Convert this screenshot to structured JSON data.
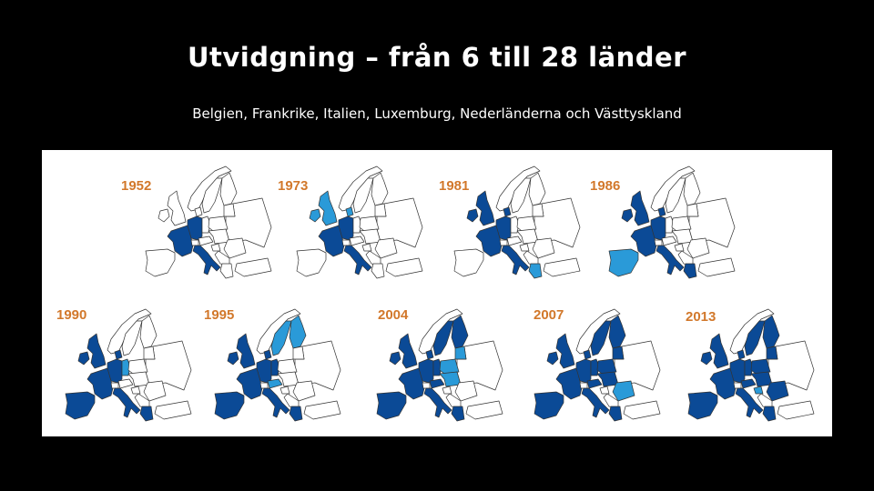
{
  "title": "Utvidgning – från 6 till 28 länder",
  "subtitle": "Belgien, Frankrike, Italien, Luxemburg, Nederländerna och Västtyskland",
  "colors": {
    "member": "#0b4a96",
    "new_member": "#2a9ad8",
    "non_member": "#ffffff",
    "year_label": "#d2782b"
  },
  "maps": [
    {
      "year": "1952",
      "members": [
        "france",
        "west_germany_benelux",
        "italy"
      ],
      "new": []
    },
    {
      "year": "1973",
      "members": [
        "france",
        "west_germany_benelux",
        "italy"
      ],
      "new": [
        "uk",
        "ireland",
        "denmark"
      ]
    },
    {
      "year": "1981",
      "members": [
        "france",
        "west_germany_benelux",
        "italy",
        "uk",
        "ireland",
        "denmark"
      ],
      "new": [
        "greece"
      ]
    },
    {
      "year": "1986",
      "members": [
        "france",
        "west_germany_benelux",
        "italy",
        "uk",
        "ireland",
        "denmark",
        "greece"
      ],
      "new": [
        "iberia"
      ]
    },
    {
      "year": "1990",
      "members": [
        "france",
        "west_germany_benelux",
        "italy",
        "uk",
        "ireland",
        "denmark",
        "greece",
        "iberia"
      ],
      "new": [
        "east_germany"
      ]
    },
    {
      "year": "1995",
      "members": [
        "france",
        "west_germany_benelux",
        "italy",
        "uk",
        "ireland",
        "denmark",
        "greece",
        "iberia",
        "east_germany"
      ],
      "new": [
        "sweden",
        "finland",
        "austria"
      ]
    },
    {
      "year": "2004",
      "members": [
        "france",
        "west_germany_benelux",
        "italy",
        "uk",
        "ireland",
        "denmark",
        "greece",
        "iberia",
        "east_germany",
        "sweden",
        "finland",
        "austria"
      ],
      "new": [
        "poland",
        "baltics",
        "central_europe"
      ]
    },
    {
      "year": "2007",
      "members": [
        "france",
        "west_germany_benelux",
        "italy",
        "uk",
        "ireland",
        "denmark",
        "greece",
        "iberia",
        "east_germany",
        "sweden",
        "finland",
        "austria",
        "poland",
        "baltics",
        "central_europe"
      ],
      "new": [
        "romania_bulgaria"
      ]
    },
    {
      "year": "2013",
      "members": [
        "france",
        "west_germany_benelux",
        "italy",
        "uk",
        "ireland",
        "denmark",
        "greece",
        "iberia",
        "east_germany",
        "sweden",
        "finland",
        "austria",
        "poland",
        "baltics",
        "central_europe",
        "romania_bulgaria"
      ],
      "new": [
        "croatia"
      ]
    }
  ]
}
